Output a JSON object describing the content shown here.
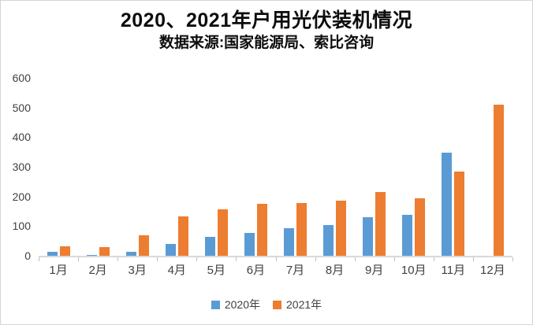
{
  "chart_data": {
    "type": "bar",
    "title": "2020、2021年户用光伏装机情况",
    "subtitle": "数据来源:国家能源局、索比咨询",
    "categories": [
      "1月",
      "2月",
      "3月",
      "4月",
      "5月",
      "6月",
      "7月",
      "8月",
      "9月",
      "10月",
      "11月",
      "12月"
    ],
    "series": [
      {
        "name": "2020年",
        "color": "#5B9BD5",
        "values": [
          14,
          3,
          13,
          41,
          63,
          78,
          92,
          103,
          129,
          137,
          349,
          null
        ]
      },
      {
        "name": "2021年",
        "color": "#ED7D31",
        "values": [
          32,
          30,
          70,
          134,
          157,
          174,
          177,
          187,
          215,
          193,
          284,
          510
        ]
      }
    ],
    "xlabel": "",
    "ylabel": "",
    "ylim": [
      0,
      600
    ],
    "y_ticks": [
      600,
      500,
      400,
      300,
      200,
      100,
      0
    ],
    "grid": false,
    "legend_position": "bottom",
    "axis_line_color": "#d9d9d9",
    "tick_color": "#bfbfbf",
    "label_color": "#404040"
  }
}
